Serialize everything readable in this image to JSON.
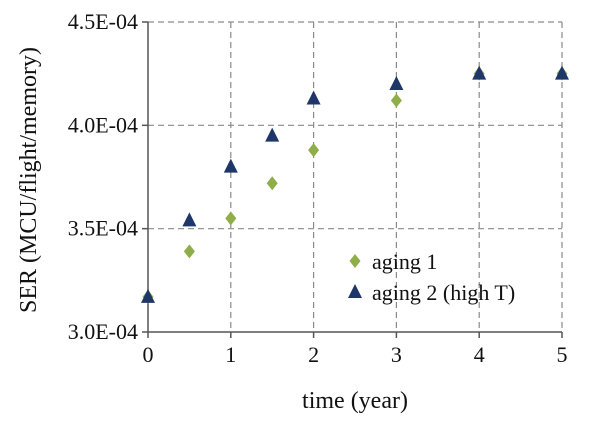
{
  "chart_data": {
    "type": "scatter",
    "title": "",
    "xlabel": "time (year)",
    "ylabel": "SER (MCU/flight/memory)",
    "xlim": [
      0,
      5
    ],
    "ylim": [
      0.0003,
      0.00045
    ],
    "x_ticks": [
      0,
      1,
      2,
      3,
      4,
      5
    ],
    "x_tick_labels": [
      "0",
      "1",
      "2",
      "3",
      "4",
      "5"
    ],
    "y_ticks": [
      0.0003,
      0.00035,
      0.0004,
      0.00045
    ],
    "y_tick_labels": [
      "3.0E-04",
      "3.5E-04",
      "4.0E-04",
      "4.5E-04"
    ],
    "grid": true,
    "legend_position": "bottom-right",
    "series": [
      {
        "name": "aging 1",
        "marker": "diamond",
        "color": "#8fae4a",
        "x": [
          0,
          0.5,
          1,
          1.5,
          2,
          3,
          4,
          5
        ],
        "y": [
          0.000317,
          0.000339,
          0.000355,
          0.000372,
          0.000388,
          0.000412,
          0.000425,
          0.000425
        ]
      },
      {
        "name": "aging 2 (high T)",
        "marker": "triangle",
        "color": "#1f3668",
        "x": [
          0,
          0.5,
          1,
          1.5,
          2,
          3,
          4,
          5
        ],
        "y": [
          0.000317,
          0.000354,
          0.00038,
          0.000395,
          0.000413,
          0.00042,
          0.000425,
          0.000425
        ]
      }
    ]
  }
}
